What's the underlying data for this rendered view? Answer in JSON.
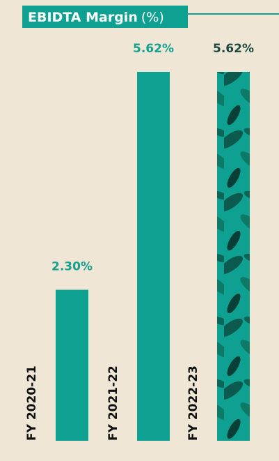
{
  "chart_data": {
    "type": "bar",
    "title": "EBIDTA Margin",
    "unit": "(%)",
    "categories": [
      "FY 2020-21",
      "FY 2021-22",
      "FY 2022-23"
    ],
    "values": [
      2.3,
      5.62,
      5.62
    ],
    "value_labels": [
      "2.30%",
      "5.62%",
      "5.62%"
    ],
    "color": "#0ea192"
  }
}
